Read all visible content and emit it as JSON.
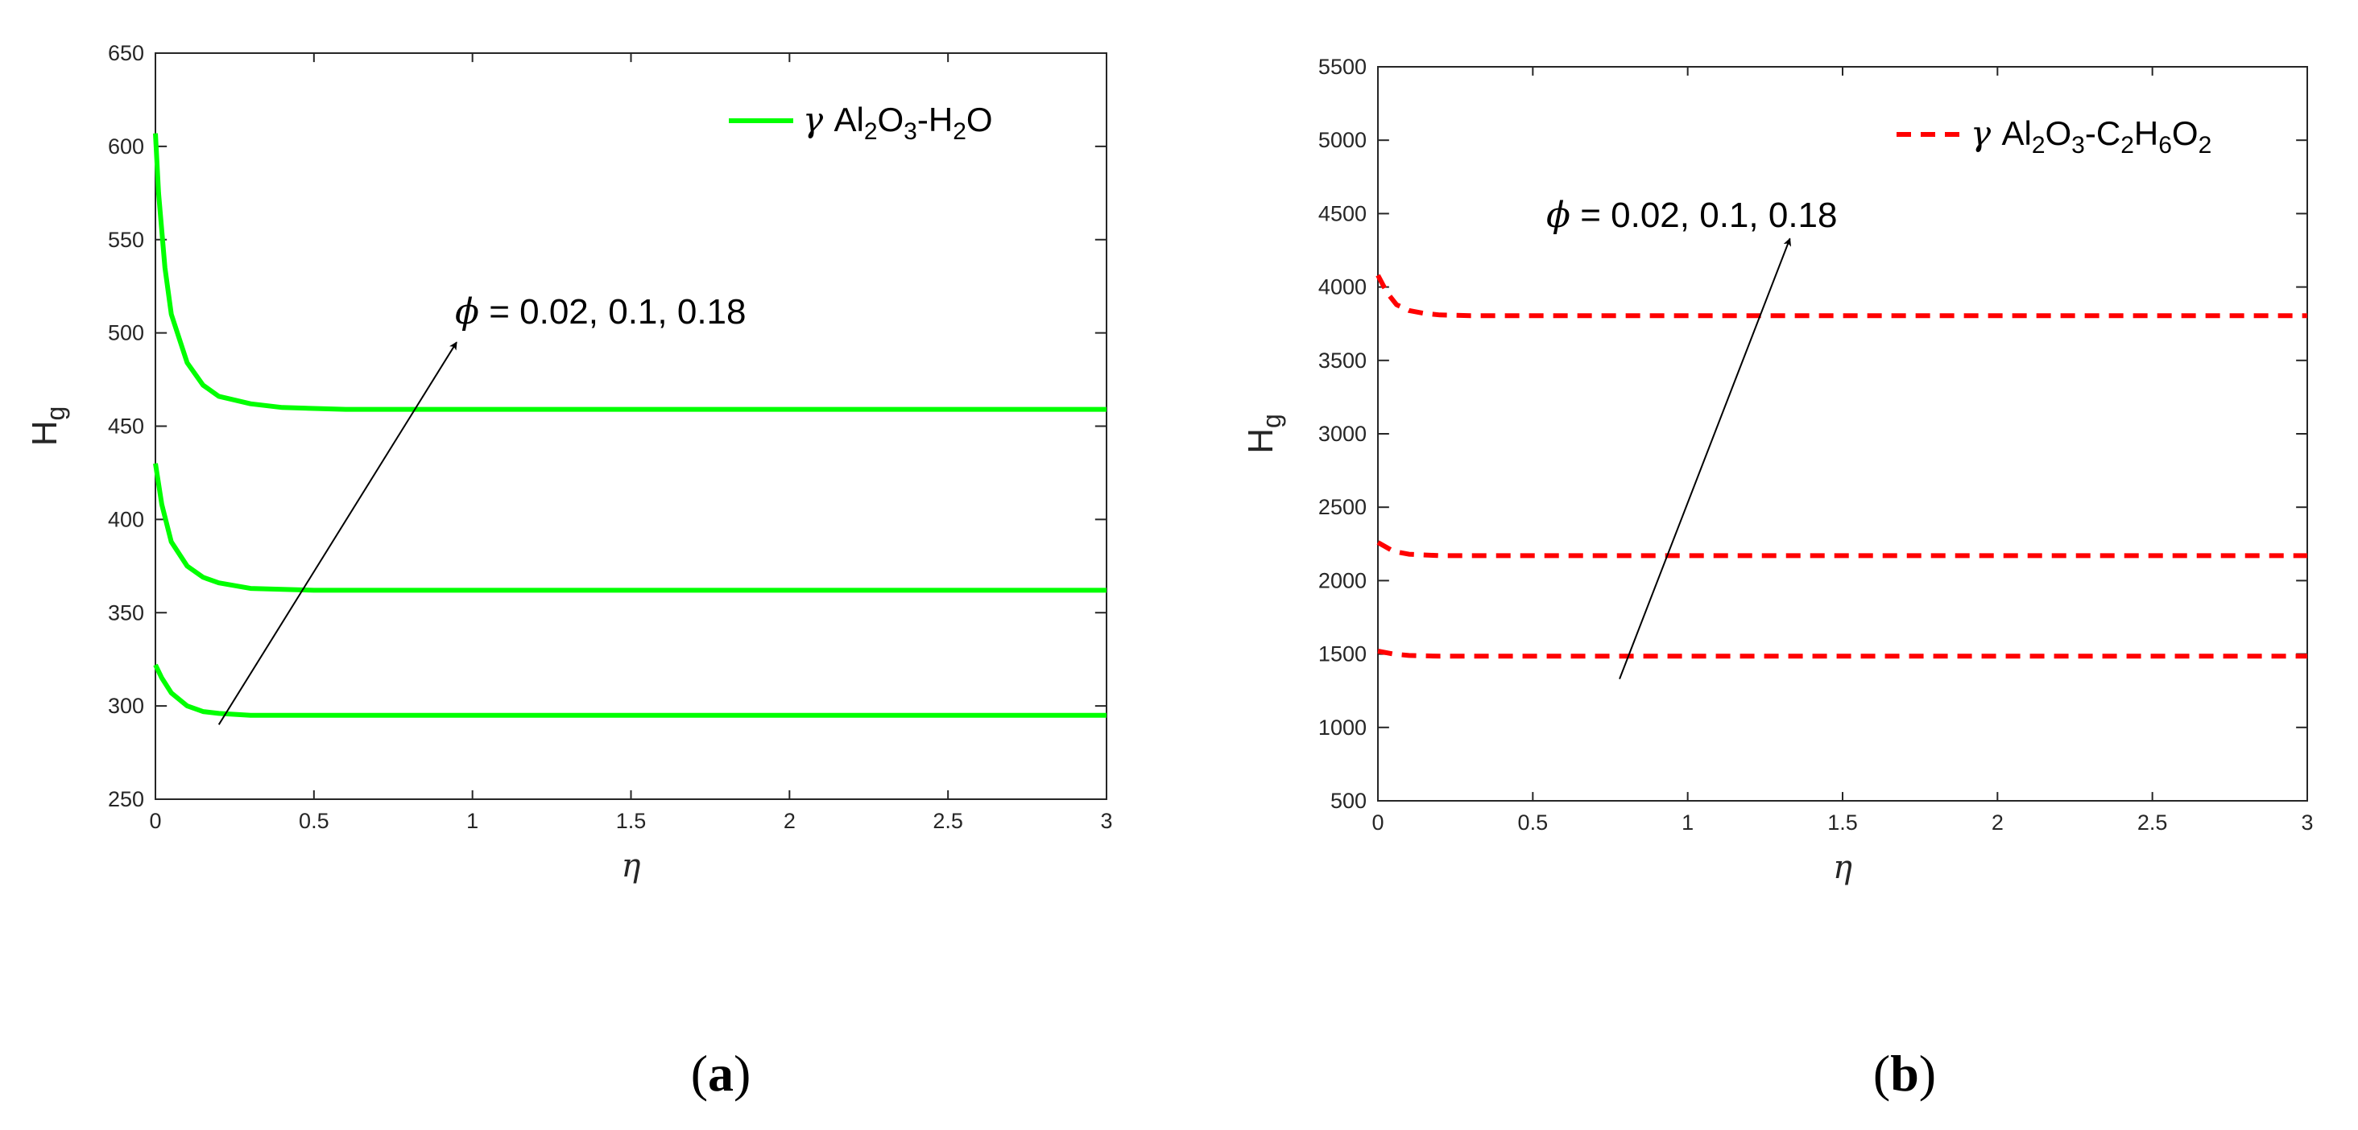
{
  "chart_data": [
    {
      "type": "line",
      "panel_caption": {
        "open": "(",
        "letter": "a",
        "close": ")"
      },
      "xlabel": "η",
      "ylabel": {
        "main": "H",
        "sub": "g"
      },
      "xlim": [
        0,
        3
      ],
      "ylim": [
        250,
        650
      ],
      "xticks": [
        "0",
        "0.5",
        "1",
        "1.5",
        "2",
        "2.5",
        "3"
      ],
      "yticks": [
        "250",
        "300",
        "350",
        "400",
        "450",
        "500",
        "550",
        "600",
        "650"
      ],
      "legend": {
        "position": "top-right",
        "gamma": "γ",
        "parts": [
          [
            "Al",
            ""
          ],
          [
            "2",
            "sub"
          ],
          [
            "O",
            ""
          ],
          [
            "3",
            "sub"
          ],
          [
            "-H",
            ""
          ],
          [
            "2",
            "sub"
          ],
          [
            "O",
            ""
          ]
        ]
      },
      "line_color": "#00ff00",
      "line_style": "solid",
      "series": [
        {
          "phi": 0.02,
          "x": [
            0,
            0.02,
            0.05,
            0.1,
            0.15,
            0.2,
            0.3,
            0.5,
            1,
            3
          ],
          "y": [
            322,
            315,
            307,
            300,
            297,
            296,
            295,
            295,
            295,
            295
          ]
        },
        {
          "phi": 0.1,
          "x": [
            0,
            0.02,
            0.05,
            0.1,
            0.15,
            0.2,
            0.3,
            0.5,
            1,
            3
          ],
          "y": [
            430,
            408,
            388,
            375,
            369,
            366,
            363,
            362,
            362,
            362
          ]
        },
        {
          "phi": 0.18,
          "x": [
            0,
            0.01,
            0.03,
            0.05,
            0.1,
            0.15,
            0.2,
            0.3,
            0.4,
            0.6,
            1,
            3
          ],
          "y": [
            607,
            575,
            535,
            510,
            484,
            472,
            466,
            462,
            460,
            459,
            459,
            459
          ]
        }
      ],
      "annotation": {
        "phi_symbol": "ϕ",
        "text": " = 0.02, 0.1, 0.18",
        "arrow_from": [
          0.2,
          290
        ],
        "arrow_to": [
          0.95,
          495
        ]
      }
    },
    {
      "type": "line",
      "panel_caption": {
        "open": "(",
        "letter": "b",
        "close": ")"
      },
      "xlabel": "η",
      "ylabel": {
        "main": "H",
        "sub": "g"
      },
      "xlim": [
        0,
        3
      ],
      "ylim": [
        500,
        5500
      ],
      "xticks": [
        "0",
        "0.5",
        "1",
        "1.5",
        "2",
        "2.5",
        "3"
      ],
      "yticks": [
        "500",
        "1000",
        "1500",
        "2000",
        "2500",
        "3000",
        "3500",
        "4000",
        "4500",
        "5000",
        "5500"
      ],
      "legend": {
        "position": "top-right",
        "gamma": "γ",
        "parts": [
          [
            "Al",
            ""
          ],
          [
            "2",
            "sub"
          ],
          [
            "O",
            ""
          ],
          [
            "3",
            "sub"
          ],
          [
            "-C",
            ""
          ],
          [
            "2",
            "sub"
          ],
          [
            "H",
            ""
          ],
          [
            "6",
            "sub"
          ],
          [
            "O",
            ""
          ],
          [
            "2",
            "sub"
          ]
        ]
      },
      "line_color": "#ff0000",
      "line_style": "dashed",
      "series": [
        {
          "phi": 0.02,
          "x": [
            0,
            0.05,
            0.1,
            0.2,
            0.5,
            3
          ],
          "y": [
            1520,
            1500,
            1490,
            1485,
            1485,
            1485
          ]
        },
        {
          "phi": 0.1,
          "x": [
            0,
            0.05,
            0.1,
            0.2,
            0.5,
            3
          ],
          "y": [
            2260,
            2200,
            2180,
            2170,
            2170,
            2170
          ]
        },
        {
          "phi": 0.18,
          "x": [
            0,
            0.03,
            0.06,
            0.1,
            0.15,
            0.2,
            0.3,
            0.5,
            3
          ],
          "y": [
            4080,
            3960,
            3880,
            3840,
            3820,
            3810,
            3805,
            3805,
            3805
          ]
        }
      ],
      "annotation": {
        "phi_symbol": "ϕ",
        "text": " = 0.02, 0.1, 0.18",
        "arrow_from": [
          0.78,
          1330
        ],
        "arrow_to": [
          1.33,
          4330
        ]
      }
    }
  ]
}
